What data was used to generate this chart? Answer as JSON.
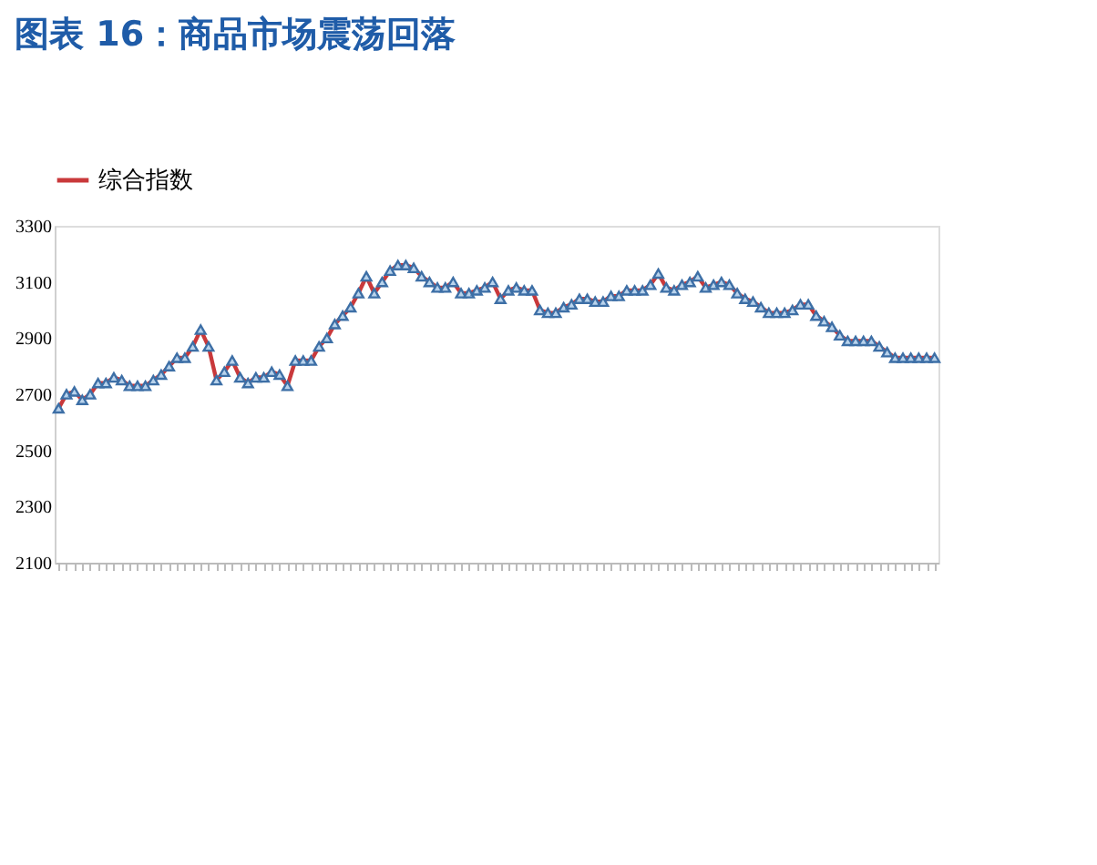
{
  "chart_data": {
    "type": "line",
    "title": "图表 16：商品市场震荡回落",
    "categories": [
      null,
      null,
      null,
      null,
      null,
      null,
      null,
      null,
      null,
      null,
      null,
      null,
      null,
      null,
      null,
      null,
      null,
      null,
      null,
      null,
      null,
      null,
      null,
      null,
      null,
      null,
      null,
      null,
      null,
      null,
      null,
      null,
      null,
      null,
      null,
      null,
      null,
      null,
      null,
      null,
      null,
      null,
      null,
      null,
      null,
      null,
      null,
      null,
      null,
      null,
      null,
      null,
      null,
      null,
      null,
      null,
      null,
      null,
      null,
      null,
      null,
      null,
      null,
      null,
      null,
      null,
      null,
      null,
      null,
      null,
      null,
      null,
      null,
      null,
      null,
      null,
      null,
      null,
      null,
      null,
      null,
      null,
      null,
      null,
      null,
      null,
      null,
      null,
      null,
      null,
      null,
      null,
      null,
      null,
      null,
      null,
      null,
      null,
      null,
      null,
      null,
      null,
      null,
      null,
      null,
      null,
      null,
      null,
      null,
      null,
      null,
      null
    ],
    "series": [
      {
        "name": "综合指数",
        "color": "#c9393b",
        "values": [
          2650,
          2700,
          2710,
          2680,
          2700,
          2740,
          2740,
          2760,
          2750,
          2730,
          2730,
          2730,
          2750,
          2770,
          2800,
          2830,
          2830,
          2870,
          2930,
          2870,
          2750,
          2780,
          2820,
          2760,
          2740,
          2760,
          2760,
          2780,
          2770,
          2730,
          2820,
          2820,
          2820,
          2870,
          2900,
          2950,
          2980,
          3010,
          3060,
          3120,
          3060,
          3100,
          3140,
          3160,
          3160,
          3150,
          3120,
          3100,
          3080,
          3080,
          3100,
          3060,
          3060,
          3070,
          3080,
          3100,
          3040,
          3070,
          3080,
          3070,
          3070,
          3000,
          2990,
          2990,
          3010,
          3020,
          3040,
          3040,
          3030,
          3030,
          3050,
          3050,
          3070,
          3070,
          3070,
          3090,
          3130,
          3080,
          3070,
          3090,
          3100,
          3120,
          3080,
          3090,
          3100,
          3090,
          3060,
          3040,
          3030,
          3010,
          2990,
          2990,
          2990,
          3000,
          3020,
          3020,
          2980,
          2960,
          2940,
          2910,
          2890,
          2890,
          2890,
          2890,
          2870,
          2850,
          2830,
          2830,
          2830,
          2830,
          2830,
          2830
        ]
      }
    ],
    "ylim": [
      2100,
      3300
    ],
    "yticks": [
      2100,
      2300,
      2500,
      2700,
      2900,
      3100,
      3300
    ],
    "marker": "triangle",
    "legend": "top",
    "grid": false,
    "tick_labels": "y"
  }
}
